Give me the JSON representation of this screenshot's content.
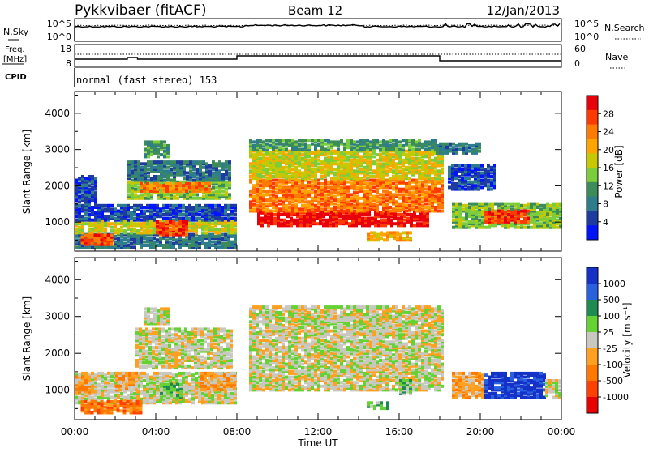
{
  "header": {
    "station": "Pykkvibaer (fitACF)",
    "beam": "Beam 12",
    "date": "12/Jan/2013"
  },
  "top_panels": {
    "nsky_label": "N.Sky",
    "nsky_ticks": [
      "10^5",
      "10^0"
    ],
    "nsky_right_ticks": [
      "10^5",
      "10^0"
    ],
    "nsearch_label": "N.Search",
    "freq_label_1": "Freq.",
    "freq_label_2": "[MHz]",
    "freq_ticks": [
      "18",
      "8"
    ],
    "nave_ticks": [
      "60",
      "0"
    ],
    "nave_label": "Nave",
    "cpid_label": "CPID",
    "cpid_text": "normal (fast stereo) 153"
  },
  "x_axis": {
    "label": "Time UT",
    "ticks": [
      "00:00",
      "04:00",
      "08:00",
      "12:00",
      "16:00",
      "20:00",
      "00:00"
    ]
  },
  "chart_data": [
    {
      "type": "heatmap",
      "name": "power",
      "ylabel": "Slant Range [km]",
      "yticks": [
        1000,
        2000,
        3000,
        4000
      ],
      "ylim": [
        200,
        4600
      ],
      "xlim_hours": [
        0,
        24
      ],
      "colorbar_label": "Power [dB]",
      "colorbar_ticks": [
        "28",
        "24",
        "20",
        "16",
        "12",
        "8",
        "4"
      ],
      "colorbar_colors": [
        "#e8000b",
        "#ff3a00",
        "#ff7a00",
        "#ffa500",
        "#c8c800",
        "#7ccd3c",
        "#3c8c5a",
        "#2e7d8c",
        "#1e3ca0",
        "#0014ff"
      ],
      "regions": [
        {
          "t0": 0.0,
          "t1": 7.9,
          "r0": 300,
          "r1": 700,
          "level": 7
        },
        {
          "t0": 0.0,
          "t1": 7.9,
          "r0": 700,
          "r1": 1050,
          "level": 4
        },
        {
          "t0": 0.0,
          "t1": 7.9,
          "r0": 1050,
          "r1": 1500,
          "level": 8
        },
        {
          "t0": 0.3,
          "t1": 1.8,
          "r0": 380,
          "r1": 650,
          "level": 1
        },
        {
          "t0": 4.0,
          "t1": 5.6,
          "r0": 650,
          "r1": 1050,
          "level": 1
        },
        {
          "t0": 2.6,
          "t1": 7.6,
          "r0": 1650,
          "r1": 2150,
          "level": 5
        },
        {
          "t0": 3.2,
          "t1": 6.6,
          "r0": 1850,
          "r1": 2100,
          "level": 2
        },
        {
          "t0": 2.6,
          "t1": 7.6,
          "r0": 2150,
          "r1": 2700,
          "level": 7
        },
        {
          "t0": 3.4,
          "t1": 4.6,
          "r0": 2800,
          "r1": 3250,
          "level": 6
        },
        {
          "t0": 0.0,
          "t1": 1.0,
          "r0": 1500,
          "r1": 2300,
          "level": 8
        },
        {
          "t0": 9.0,
          "t1": 17.4,
          "r0": 900,
          "r1": 1300,
          "level": 0
        },
        {
          "t0": 8.6,
          "t1": 18.2,
          "r0": 1300,
          "r1": 2200,
          "level": 2
        },
        {
          "t0": 8.6,
          "t1": 18.2,
          "r0": 2200,
          "r1": 3000,
          "level": 4
        },
        {
          "t0": 8.6,
          "t1": 17.8,
          "r0": 3000,
          "r1": 3300,
          "level": 6
        },
        {
          "t0": 14.4,
          "t1": 16.6,
          "r0": 500,
          "r1": 750,
          "level": 3
        },
        {
          "t0": 18.6,
          "t1": 24.0,
          "r0": 850,
          "r1": 1550,
          "level": 5
        },
        {
          "t0": 20.2,
          "t1": 22.4,
          "r0": 1000,
          "r1": 1350,
          "level": 1
        },
        {
          "t0": 18.4,
          "t1": 20.8,
          "r0": 1900,
          "r1": 2600,
          "level": 8
        },
        {
          "t0": 17.8,
          "t1": 20.0,
          "r0": 2900,
          "r1": 3200,
          "level": 7
        }
      ]
    },
    {
      "type": "heatmap",
      "name": "velocity",
      "ylabel": "Slant Range [km]",
      "yticks": [
        1000,
        2000,
        3000,
        4000
      ],
      "ylim": [
        200,
        4600
      ],
      "xlim_hours": [
        0,
        24
      ],
      "colorbar_label": "Velocity [m s⁻¹]",
      "colorbar_ticks": [
        "1000",
        "500",
        "100",
        "25",
        "-25",
        "-100",
        "-500",
        "-1000"
      ],
      "colorbar_colors": [
        "#1432c8",
        "#2860e0",
        "#1e8c50",
        "#64d232",
        "#c8c8c0",
        "#ffa020",
        "#ff7800",
        "#ff4000",
        "#e80000"
      ],
      "regions": [
        {
          "t0": 0.0,
          "t1": 7.9,
          "r0": 650,
          "r1": 1500,
          "level": 4
        },
        {
          "t0": 0.3,
          "t1": 3.3,
          "r0": 380,
          "r1": 700,
          "level": 6
        },
        {
          "t0": 0.0,
          "t1": 0.9,
          "r0": 900,
          "r1": 1500,
          "level": 5
        },
        {
          "t0": 2.0,
          "t1": 3.0,
          "r0": 1000,
          "r1": 1500,
          "level": 5
        },
        {
          "t0": 4.2,
          "t1": 5.3,
          "r0": 800,
          "r1": 1200,
          "level": 3
        },
        {
          "t0": 6.2,
          "t1": 7.9,
          "r0": 1000,
          "r1": 1500,
          "level": 5
        },
        {
          "t0": 3.0,
          "t1": 7.8,
          "r0": 1600,
          "r1": 2700,
          "level": 4
        },
        {
          "t0": 3.4,
          "t1": 4.6,
          "r0": 2800,
          "r1": 3250,
          "level": 4
        },
        {
          "t0": 8.6,
          "t1": 18.2,
          "r0": 1000,
          "r1": 3300,
          "level": 4
        },
        {
          "t0": 14.4,
          "t1": 15.4,
          "r0": 500,
          "r1": 700,
          "level": 3
        },
        {
          "t0": 16.0,
          "t1": 16.6,
          "r0": 900,
          "r1": 1300,
          "level": 3
        },
        {
          "t0": 18.6,
          "t1": 20.2,
          "r0": 800,
          "r1": 1500,
          "level": 5
        },
        {
          "t0": 20.2,
          "t1": 23.2,
          "r0": 800,
          "r1": 1500,
          "level": 0
        },
        {
          "t0": 23.2,
          "t1": 24.0,
          "r0": 800,
          "r1": 1300,
          "level": 4
        }
      ]
    }
  ]
}
